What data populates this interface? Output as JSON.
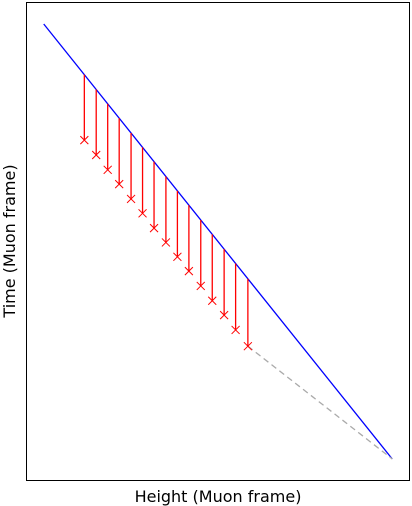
{
  "chart_data": {
    "type": "line",
    "title": "",
    "xlabel": "Height (Muon frame)",
    "ylabel": "Time (Muon frame)",
    "xlim": [
      0,
      100
    ],
    "ylim": [
      0,
      100
    ],
    "ticks": "none",
    "grid": false,
    "legend": "none",
    "series": [
      {
        "kind": "line",
        "color": "#0000ff",
        "x": [
          4.5,
          95.5
        ],
        "y": [
          95.5,
          4.5
        ]
      },
      {
        "kind": "dashed-line",
        "color": "#aaaaaa",
        "x": [
          57.8,
          95.5
        ],
        "y": [
          28.1,
          4.5
        ]
      },
      {
        "kind": "vertical-segments",
        "color": "#ff0000",
        "x": [
          15.1,
          18.2,
          21.2,
          24.2,
          27.3,
          30.3,
          33.3,
          36.4,
          39.4,
          42.4,
          45.5,
          48.5,
          51.6,
          54.6,
          57.8
        ],
        "y_top": [
          84.9,
          81.8,
          78.8,
          75.8,
          72.7,
          69.7,
          66.7,
          63.6,
          60.6,
          57.6,
          54.5,
          51.5,
          48.4,
          45.4,
          42.2
        ],
        "y_bottom": [
          71.2,
          68.1,
          65.0,
          62.0,
          58.9,
          55.9,
          52.8,
          49.8,
          46.8,
          43.8,
          40.7,
          37.6,
          34.6,
          31.5,
          28.1
        ]
      }
    ]
  }
}
